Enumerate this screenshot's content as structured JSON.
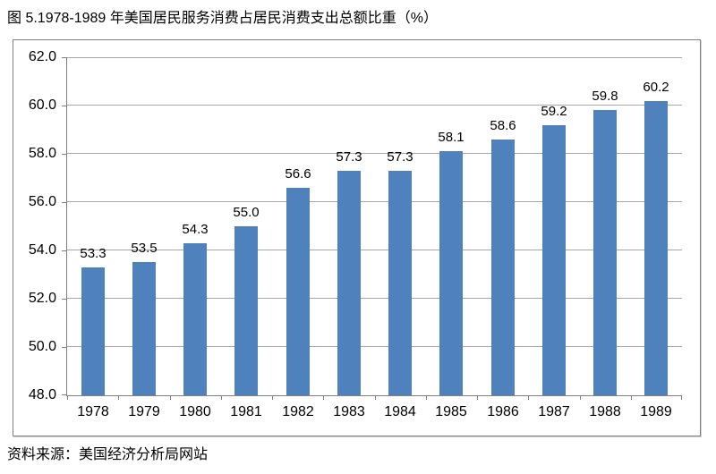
{
  "page": {
    "title": "图 5.1978-1989 年美国居民服务消费占居民消费支出总额比重（%）",
    "source_note": "资料来源：美国经济分析局网站"
  },
  "chart_data": {
    "type": "bar",
    "title": "图 5.1978-1989 年美国居民服务消费占居民消费支出总额比重（%）",
    "categories": [
      "1978",
      "1979",
      "1980",
      "1981",
      "1982",
      "1983",
      "1984",
      "1985",
      "1986",
      "1987",
      "1988",
      "1989"
    ],
    "values": [
      53.3,
      53.5,
      54.3,
      55.0,
      56.6,
      57.3,
      57.3,
      58.1,
      58.6,
      59.2,
      59.8,
      60.2
    ],
    "value_label_format": "one-decimal",
    "value_label_position": "outside-end",
    "xlabel": "",
    "ylabel": "",
    "ylim": [
      48.0,
      62.0
    ],
    "ytick_step": 2.0,
    "grid": true,
    "legend_position": "none",
    "colors": {
      "bar": "#4f81bd",
      "gridline": "#a6a6a6",
      "axis": "#808080",
      "text": "#000000",
      "frame_border": "#7f7f7f",
      "background": "#ffffff"
    }
  }
}
